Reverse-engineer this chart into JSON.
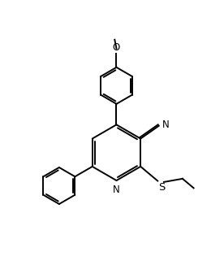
{
  "bg": "#ffffff",
  "lc": "#000000",
  "lw": 1.4,
  "fs": 8.5,
  "figsize": [
    2.76,
    3.26
  ],
  "dpi": 100,
  "xlim": [
    0,
    10
  ],
  "ylim": [
    0,
    11.8
  ]
}
